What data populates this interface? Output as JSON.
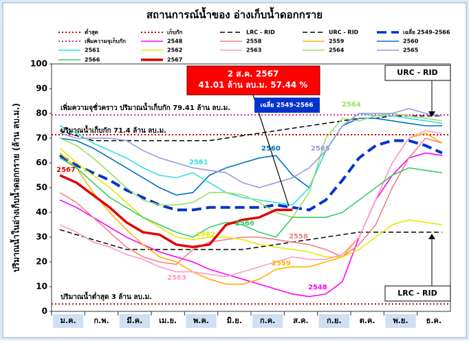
{
  "chart_data": {
    "type": "line",
    "title": "สถานการณ์น้ำของ อ่างเก็บน้ำดอกกราย",
    "y_label": "ปริมาณน้ำในอ่างเก็บน้ำดอกกราย (ล้าน ลบ.ม.)",
    "categories": [
      "ม.ค.",
      null,
      "ก.พ.",
      null,
      "มี.ค.",
      null,
      "เม.ย.",
      null,
      "พ.ค.",
      null,
      "มิ.ย.",
      null,
      "ก.ค.",
      null,
      "ส.ค.",
      null,
      "ก.ย.",
      null,
      "ต.ค.",
      null,
      "พ.ย.",
      null,
      "ธ.ค.",
      null
    ],
    "ylim": [
      0,
      100
    ],
    "yticks": [
      0,
      10,
      20,
      30,
      40,
      50,
      60,
      70,
      80,
      90,
      100
    ],
    "grid": false,
    "series": [
      {
        "name": "ต่ำสุด",
        "color": "#c00000",
        "style": "dotted",
        "value": 3
      },
      {
        "name": "เก็บกัก",
        "color": "#c00000",
        "style": "dotted",
        "value": 71.4
      },
      {
        "name": "LRC - RID",
        "color": "#000000",
        "style": "dashed",
        "values": [
          33,
          31,
          29,
          27,
          25,
          25,
          25,
          25,
          25,
          25,
          25,
          25,
          26,
          27,
          28,
          29,
          30,
          31,
          32,
          32,
          32,
          32,
          32,
          32
        ]
      },
      {
        "name": "URC - RID",
        "color": "#000000",
        "style": "dashed",
        "values": [
          73,
          71,
          69,
          69,
          69,
          69,
          69,
          69,
          69,
          69,
          70,
          71,
          72,
          73,
          74,
          75,
          76,
          77,
          78,
          78,
          79,
          79,
          79,
          79
        ]
      },
      {
        "name": "เฉลี่ย 2549-2566",
        "color": "#0033cc",
        "style": "thickdash",
        "values": [
          63,
          59,
          56,
          53,
          49,
          46,
          43,
          41,
          41,
          42,
          42,
          42,
          42,
          43,
          42,
          41,
          45,
          53,
          62,
          67,
          69,
          69,
          67,
          64
        ]
      },
      {
        "name": "เพิ่มความจุเก็บกัก",
        "color": "#e0209a",
        "style": "dotted",
        "value": 79.41
      },
      {
        "name": "2548",
        "color": "#ff00ff",
        "style": "solid",
        "values": [
          45,
          42,
          38,
          34,
          30,
          27,
          24,
          22,
          20,
          17,
          15,
          13,
          11,
          9,
          7,
          6,
          7,
          12,
          30,
          45,
          55,
          62,
          64,
          63
        ]
      },
      {
        "name": "2558",
        "color": "#f08080",
        "style": "solid",
        "values": [
          48,
          44,
          38,
          32,
          26,
          22,
          20,
          19,
          25,
          28,
          29,
          30,
          30,
          29,
          28,
          27,
          25,
          22,
          27,
          35,
          50,
          62,
          70,
          68
        ]
      },
      {
        "name": "2559",
        "color": "#ffb000",
        "style": "solid",
        "values": [
          64,
          58,
          48,
          40,
          33,
          27,
          22,
          20,
          16,
          13,
          11,
          11,
          13,
          17,
          18,
          18,
          20,
          22,
          30,
          45,
          60,
          70,
          72,
          68
        ]
      },
      {
        "name": "2560",
        "color": "#0070c0",
        "style": "solid",
        "values": [
          70,
          69,
          66,
          62,
          58,
          54,
          50,
          47,
          48,
          55,
          58,
          60,
          62,
          63,
          55,
          50,
          65,
          75,
          78,
          78,
          77,
          76,
          75,
          75
        ]
      },
      {
        "name": "2561",
        "color": "#33e0e0",
        "style": "solid",
        "values": [
          75,
          72,
          68,
          65,
          62,
          58,
          55,
          54,
          56,
          52,
          48,
          46,
          45,
          44,
          43,
          50,
          65,
          75,
          80,
          79,
          79,
          78,
          77,
          76
        ]
      },
      {
        "name": "2562",
        "color": "#e8e800",
        "style": "solid",
        "values": [
          66,
          60,
          55,
          50,
          44,
          38,
          34,
          30,
          29,
          30,
          30,
          29,
          27,
          26,
          25,
          24,
          22,
          22,
          25,
          30,
          35,
          37,
          36,
          35
        ]
      },
      {
        "name": "2563",
        "color": "#ff99cc",
        "style": "solid",
        "values": [
          35,
          32,
          28,
          26,
          23,
          21,
          18,
          16,
          16,
          15,
          14,
          16,
          18,
          20,
          22,
          21,
          21,
          23,
          30,
          45,
          60,
          70,
          73,
          72
        ]
      },
      {
        "name": "2564",
        "color": "#99e066",
        "style": "solid",
        "values": [
          70,
          67,
          62,
          56,
          50,
          45,
          43,
          43,
          44,
          48,
          48,
          47,
          44,
          40,
          38,
          48,
          70,
          78,
          77,
          79,
          80,
          79,
          78,
          77
        ]
      },
      {
        "name": "2565",
        "color": "#9999dd",
        "style": "solid",
        "values": [
          72,
          70,
          70,
          70,
          69,
          65,
          62,
          60,
          58,
          57,
          56,
          52,
          50,
          52,
          54,
          58,
          65,
          75,
          80,
          80,
          80,
          82,
          80,
          79
        ]
      },
      {
        "name": "2566",
        "color": "#33cc66",
        "style": "solid",
        "values": [
          62,
          58,
          52,
          46,
          42,
          38,
          35,
          32,
          30,
          34,
          36,
          35,
          32,
          30,
          38,
          38,
          38,
          40,
          45,
          50,
          55,
          58,
          57,
          56
        ]
      },
      {
        "name": "2567",
        "color": "#e00000",
        "style": "thick",
        "values": [
          55,
          52,
          47,
          42,
          36,
          32,
          31,
          27,
          26,
          27,
          35,
          37,
          38,
          41,
          41,
          null,
          null,
          null,
          null,
          null,
          null,
          null,
          null,
          null
        ]
      }
    ],
    "annotations": [
      "2 ส.ค. 2567",
      "41.01 ล้าน ลบ.ม. 57.44 %",
      "URC - RID",
      "LRC - RID",
      "เฉลี่ย 2549-2566",
      "เพิ่มความจุชั่วคราว ปริมาณน้ำเก็บกัก 79.41 ล้าน ลบ.ม.",
      "ปริมาณน้ำเก็บกัก 71.4 ล้าน ลบ.ม.",
      "ปริมาณน้ำต่ำสุด 3 ล้าน ลบ.ม."
    ]
  }
}
